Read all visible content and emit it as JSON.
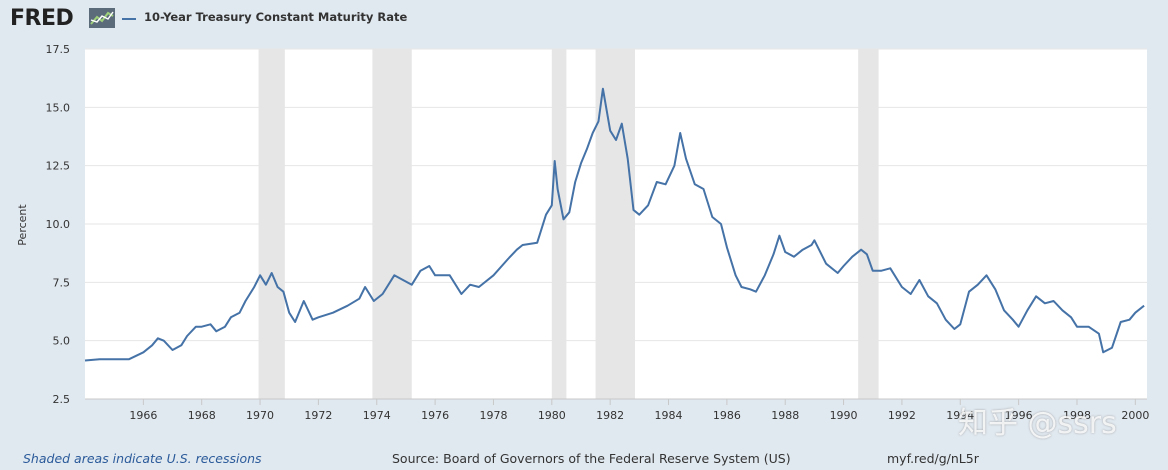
{
  "header": {
    "logo_text": "FRED",
    "logo_icon": "line-chart-icon",
    "series_label": "10-Year Treasury Constant Maturity Rate",
    "series_color": "#4572a7"
  },
  "footer": {
    "recession_note": "Shaded areas indicate U.S. recessions",
    "source": "Source: Board of Governors of the Federal Reserve System (US)",
    "short_url": "myf.red/g/nL5r"
  },
  "watermark": "知乎 @ssrs",
  "chart_data": {
    "type": "line",
    "ylabel": "Percent",
    "xlim": [
      1964.0,
      2000.4
    ],
    "ylim": [
      2.5,
      17.5
    ],
    "yticks": [
      "2.5",
      "5.0",
      "7.5",
      "10.0",
      "12.5",
      "15.0",
      "17.5"
    ],
    "xticks": [
      "1966",
      "1968",
      "1970",
      "1972",
      "1974",
      "1976",
      "1978",
      "1980",
      "1982",
      "1984",
      "1986",
      "1988",
      "1990",
      "1992",
      "1994",
      "1996",
      "1998",
      "2000"
    ],
    "grid": true,
    "legend": "top-left",
    "recession_color": "#e6e6e6",
    "recessions": [
      [
        1969.95,
        1970.85
      ],
      [
        1973.85,
        1975.2
      ],
      [
        1980.0,
        1980.5
      ],
      [
        1981.5,
        1982.85
      ],
      [
        1990.5,
        1991.2
      ]
    ],
    "series": [
      {
        "name": "10-Year Treasury Constant Maturity Rate",
        "color": "#4572a7",
        "x": [
          1964.0,
          1964.5,
          1965.0,
          1965.5,
          1966.0,
          1966.3,
          1966.5,
          1966.7,
          1967.0,
          1967.3,
          1967.5,
          1967.8,
          1968.0,
          1968.3,
          1968.5,
          1968.8,
          1969.0,
          1969.3,
          1969.5,
          1969.8,
          1970.0,
          1970.2,
          1970.4,
          1970.6,
          1970.8,
          1971.0,
          1971.2,
          1971.5,
          1971.8,
          1972.0,
          1972.5,
          1973.0,
          1973.4,
          1973.6,
          1973.9,
          1974.2,
          1974.6,
          1974.9,
          1975.2,
          1975.5,
          1975.8,
          1976.0,
          1976.5,
          1976.9,
          1977.2,
          1977.5,
          1978.0,
          1978.5,
          1978.8,
          1979.0,
          1979.5,
          1979.8,
          1980.0,
          1980.1,
          1980.2,
          1980.4,
          1980.6,
          1980.8,
          1981.0,
          1981.2,
          1981.4,
          1981.6,
          1981.75,
          1982.0,
          1982.2,
          1982.4,
          1982.6,
          1982.8,
          1983.0,
          1983.3,
          1983.6,
          1983.9,
          1984.2,
          1984.4,
          1984.6,
          1984.9,
          1985.2,
          1985.5,
          1985.8,
          1986.0,
          1986.3,
          1986.5,
          1986.8,
          1987.0,
          1987.3,
          1987.6,
          1987.8,
          1988.0,
          1988.3,
          1988.6,
          1988.9,
          1989.0,
          1989.4,
          1989.8,
          1990.0,
          1990.3,
          1990.6,
          1990.8,
          1991.0,
          1991.3,
          1991.6,
          1992.0,
          1992.3,
          1992.6,
          1992.9,
          1993.2,
          1993.5,
          1993.8,
          1994.0,
          1994.3,
          1994.6,
          1994.9,
          1995.2,
          1995.5,
          1995.8,
          1996.0,
          1996.3,
          1996.6,
          1996.9,
          1997.2,
          1997.5,
          1997.8,
          1998.0,
          1998.4,
          1998.75,
          1998.9,
          1999.2,
          1999.5,
          1999.8,
          2000.0,
          2000.3
        ],
        "y": [
          4.15,
          4.2,
          4.2,
          4.2,
          4.5,
          4.8,
          5.1,
          5.0,
          4.6,
          4.8,
          5.2,
          5.6,
          5.6,
          5.7,
          5.4,
          5.6,
          6.0,
          6.2,
          6.7,
          7.3,
          7.8,
          7.4,
          7.9,
          7.3,
          7.1,
          6.2,
          5.8,
          6.7,
          5.9,
          6.0,
          6.2,
          6.5,
          6.8,
          7.3,
          6.7,
          7.0,
          7.8,
          7.6,
          7.4,
          8.0,
          8.2,
          7.8,
          7.8,
          7.0,
          7.4,
          7.3,
          7.8,
          8.5,
          8.9,
          9.1,
          9.2,
          10.4,
          10.8,
          12.7,
          11.5,
          10.2,
          10.5,
          11.8,
          12.6,
          13.2,
          13.9,
          14.4,
          15.8,
          14.0,
          13.6,
          14.3,
          12.8,
          10.6,
          10.4,
          10.8,
          11.8,
          11.7,
          12.5,
          13.9,
          12.8,
          11.7,
          11.5,
          10.3,
          10.0,
          9.0,
          7.8,
          7.3,
          7.2,
          7.1,
          7.8,
          8.7,
          9.5,
          8.8,
          8.6,
          8.9,
          9.1,
          9.3,
          8.3,
          7.9,
          8.2,
          8.6,
          8.9,
          8.7,
          8.0,
          8.0,
          8.1,
          7.3,
          7.0,
          7.6,
          6.9,
          6.6,
          5.9,
          5.5,
          5.7,
          7.1,
          7.4,
          7.8,
          7.2,
          6.3,
          5.9,
          5.6,
          6.3,
          6.9,
          6.6,
          6.7,
          6.3,
          6.0,
          5.6,
          5.6,
          5.3,
          4.5,
          4.7,
          5.8,
          5.9,
          6.2,
          6.5
        ]
      }
    ]
  }
}
